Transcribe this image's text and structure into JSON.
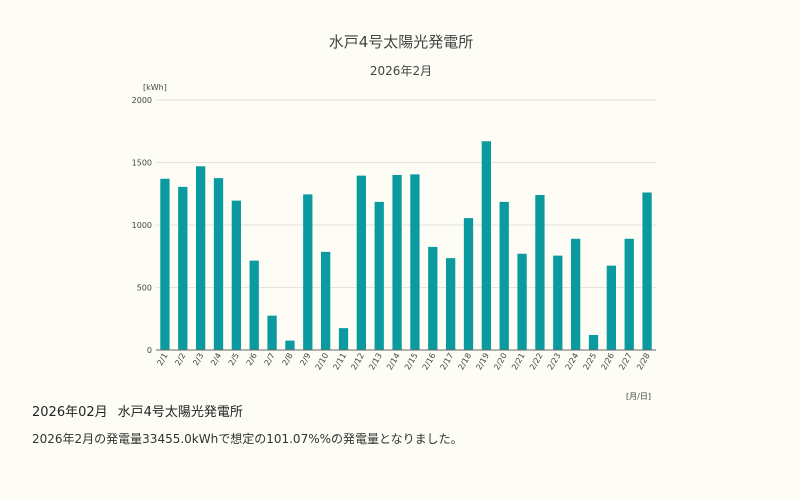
{
  "chart_data": {
    "type": "bar",
    "title": "水戸4号太陽光発電所",
    "subtitle": "2026年2月",
    "ylabel": "[kWh]",
    "xlabel": "[月/日]",
    "ylim": [
      0,
      2000
    ],
    "yticks": [
      0,
      500,
      1000,
      1500,
      2000
    ],
    "grid": true,
    "categories": [
      "2/1",
      "2/2",
      "2/3",
      "2/4",
      "2/5",
      "2/6",
      "2/7",
      "2/8",
      "2/9",
      "2/10",
      "2/11",
      "2/12",
      "2/13",
      "2/14",
      "2/15",
      "2/16",
      "2/17",
      "2/18",
      "2/19",
      "2/20",
      "2/21",
      "2/22",
      "2/23",
      "2/24",
      "2/25",
      "2/26",
      "2/27",
      "2/28"
    ],
    "values": [
      1370,
      1305,
      1470,
      1375,
      1195,
      715,
      275,
      75,
      1245,
      785,
      175,
      1395,
      1185,
      1400,
      1405,
      825,
      735,
      1055,
      1670,
      1185,
      770,
      1240,
      755,
      890,
      120,
      675,
      890,
      1260
    ],
    "color": "#0a9aa0"
  },
  "summary": {
    "period": "2026年02月",
    "plant": "水戸4号太陽光発電所",
    "text": "2026年2月の発電量33455.0kWhで想定の101.07%%の発電量となりました。"
  }
}
